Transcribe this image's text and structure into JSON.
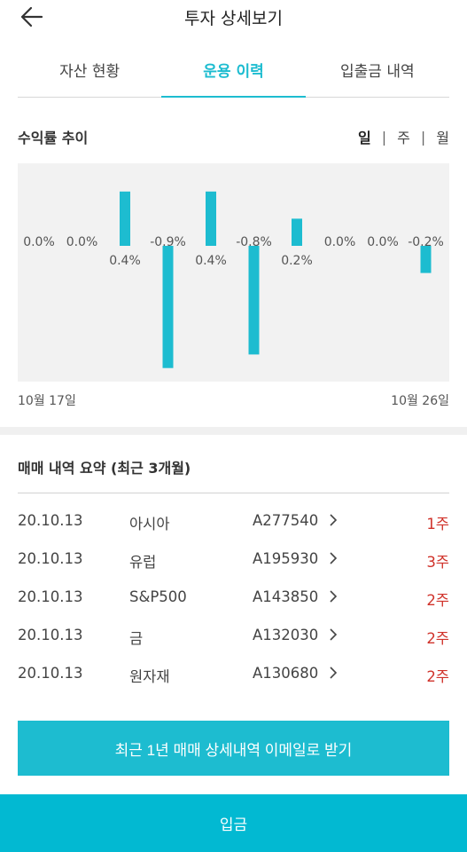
{
  "header": {
    "title": "투자 상세보기",
    "back_icon": "arrow-left-icon"
  },
  "tabs": [
    {
      "label": "자산 현황",
      "active": false
    },
    {
      "label": "운용 이력",
      "active": true
    },
    {
      "label": "입출금 내역",
      "active": false
    }
  ],
  "returns": {
    "title": "수익률 추이",
    "periods": [
      {
        "label": "일",
        "active": true
      },
      {
        "label": "주",
        "active": false
      },
      {
        "label": "월",
        "active": false
      }
    ],
    "start_date": "10월 17일",
    "end_date": "10월 26일"
  },
  "chart_data": {
    "type": "bar",
    "bar_color": "#1dbcd0",
    "labels": [
      "0.0%",
      "0.0%",
      "0.4%",
      "-0.9%",
      "0.4%",
      "-0.8%",
      "0.2%",
      "0.0%",
      "0.0%",
      "-0.2%"
    ],
    "values": [
      0.0,
      0.0,
      0.4,
      -0.9,
      0.4,
      -0.8,
      0.2,
      0.0,
      0.0,
      -0.2
    ]
  },
  "trades": {
    "title": "매매 내역 요약 (최근 3개월)",
    "rows": [
      {
        "date": "20.10.13",
        "name": "아시아",
        "code": "A277540",
        "qty": "1주"
      },
      {
        "date": "20.10.13",
        "name": "유럽",
        "code": "A195930",
        "qty": "3주"
      },
      {
        "date": "20.10.13",
        "name": "S&P500",
        "code": "A143850",
        "qty": "2주"
      },
      {
        "date": "20.10.13",
        "name": "금",
        "code": "A132030",
        "qty": "2주"
      },
      {
        "date": "20.10.13",
        "name": "원자재",
        "code": "A130680",
        "qty": "2주"
      }
    ]
  },
  "email_button": "최근 1년 매매 상세내역 이메일로 받기",
  "deposit_button": "입금"
}
